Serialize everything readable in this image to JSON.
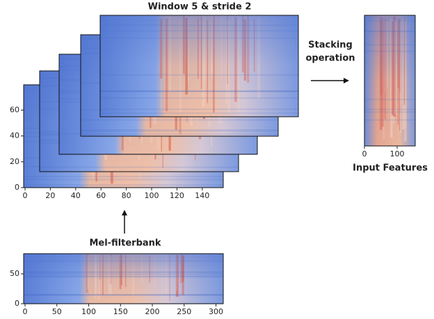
{
  "stacked_plot": {
    "title": "Window 5 & stride 2",
    "yticks": [
      0,
      20,
      40,
      60
    ],
    "xticks": [
      0,
      20,
      40,
      60,
      80,
      100,
      120,
      140
    ]
  },
  "stacking_label": {
    "line1": "Stacking",
    "line2": "operation"
  },
  "input_features": {
    "label": "Input Features",
    "xticks": [
      0,
      100
    ]
  },
  "mel_filterbank": {
    "label": "Mel-filterbank",
    "yticks": [
      0,
      50
    ],
    "xticks": [
      0,
      50,
      100,
      150,
      200,
      250,
      300
    ]
  }
}
